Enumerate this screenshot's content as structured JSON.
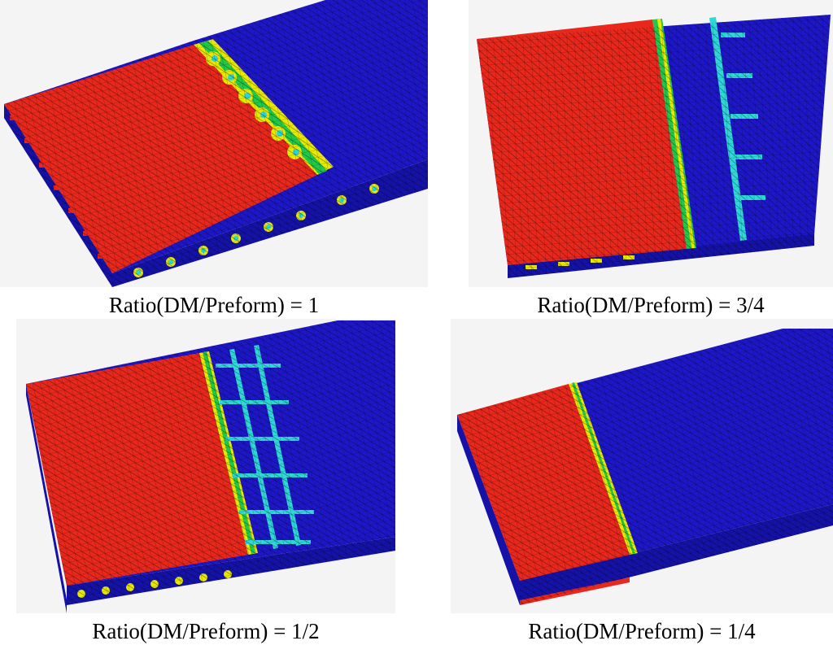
{
  "figure": {
    "panels": [
      {
        "caption": "Ratio(DM/Preform) = 1"
      },
      {
        "caption": "Ratio(DM/Preform) = 3/4"
      },
      {
        "caption": "Ratio(DM/Preform) = 1/2"
      },
      {
        "caption": "Ratio(DM/Preform) = 1/4"
      }
    ]
  },
  "colors": {
    "filled": "#e8281c",
    "unfilled": "#1d17c8",
    "side_unfilled": "#1512a8",
    "flow_front": "#2fd7d7",
    "transition_yellow": "#e8e800",
    "transition_green": "#22c84a",
    "background": "#f4f4f4"
  }
}
